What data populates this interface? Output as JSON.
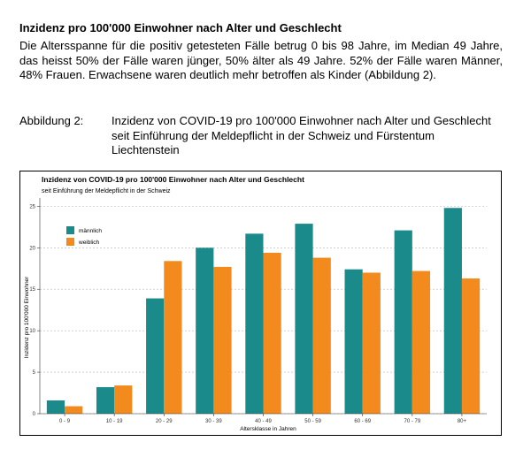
{
  "section": {
    "heading": "Inzidenz pro 100'000 Einwohner nach Alter und Geschlecht",
    "paragraph": "Die Altersspanne für die positiv getesteten Fälle betrug 0 bis 98 Jahre, im Median 49 Jahre, das heisst 50% der Fälle waren jünger, 50% älter als 49 Jahre. 52% der Fälle waren Männer, 48% Frauen. Erwachsene waren deutlich mehr betroffen als Kinder (Abbildung 2).",
    "figure_label": "Abbildung 2:",
    "figure_caption": "Inzidenz von COVID-19 pro 100'000 Einwohner nach Alter und Geschlecht seit Einführung der Meldepflicht in der Schweiz und Fürstentum Liechtenstein"
  },
  "chart_data": {
    "type": "bar",
    "title": "Inzidenz von COVID-19 pro 100'000 Einwohner nach Alter und Geschlecht",
    "subtitle": "seit Einführung der Meldepflicht in der Schweiz",
    "xlabel": "Altersklasse in Jahren",
    "ylabel": "Inzidenz pro 100'000 Einwohner",
    "categories": [
      "0 - 9",
      "10 - 19",
      "20 - 29",
      "30 - 39",
      "40 - 49",
      "50 - 59",
      "60 - 69",
      "70 - 79",
      "80+"
    ],
    "ylim": [
      0,
      26
    ],
    "yticks": [
      0,
      5,
      10,
      15,
      20,
      25
    ],
    "grid": true,
    "legend_position": "top-left",
    "series": [
      {
        "name": "männlich",
        "color": "#1b8a8a",
        "values": [
          1.6,
          3.2,
          13.9,
          20.0,
          21.7,
          22.9,
          17.4,
          22.1,
          24.8
        ]
      },
      {
        "name": "weiblich",
        "color": "#f28a1e",
        "values": [
          0.9,
          3.4,
          18.4,
          17.7,
          19.4,
          18.8,
          17.0,
          17.2,
          16.3
        ]
      }
    ]
  }
}
